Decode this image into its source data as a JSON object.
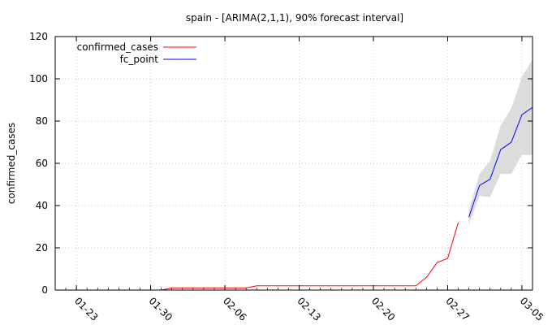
{
  "chart_data": {
    "type": "line",
    "title": "spain -  [ARIMA(2,1,1), 90% forecast interval]",
    "xlabel": "",
    "ylabel": "confirmed_cases",
    "x_axis": "date",
    "xlim": [
      "2020-01-21",
      "2020-03-06"
    ],
    "ylim": [
      0,
      120
    ],
    "grid": true,
    "legend_position": "top-left",
    "x_ticks": [
      "2020-01-23",
      "2020-01-30",
      "2020-02-06",
      "2020-02-13",
      "2020-02-20",
      "2020-02-27",
      "2020-03-05"
    ],
    "x_tick_labels": [
      "01-23",
      "01-30",
      "02-06",
      "02-13",
      "02-20",
      "02-27",
      "03-05"
    ],
    "y_ticks": [
      0,
      20,
      40,
      60,
      80,
      100,
      120
    ],
    "series": [
      {
        "name": "confirmed_cases",
        "color": "#ff0000",
        "x": [
          "2020-01-31",
          "2020-02-01",
          "2020-02-02",
          "2020-02-03",
          "2020-02-04",
          "2020-02-05",
          "2020-02-06",
          "2020-02-07",
          "2020-02-08",
          "2020-02-09",
          "2020-02-10",
          "2020-02-11",
          "2020-02-12",
          "2020-02-13",
          "2020-02-14",
          "2020-02-15",
          "2020-02-16",
          "2020-02-17",
          "2020-02-18",
          "2020-02-19",
          "2020-02-20",
          "2020-02-21",
          "2020-02-22",
          "2020-02-23",
          "2020-02-24",
          "2020-02-25",
          "2020-02-26",
          "2020-02-27",
          "2020-02-28"
        ],
        "y": [
          0,
          1,
          1,
          1,
          1,
          1,
          1,
          1,
          1,
          2,
          2,
          2,
          2,
          2,
          2,
          2,
          2,
          2,
          2,
          2,
          2,
          2,
          2,
          2,
          2,
          6,
          13,
          15,
          32
        ]
      },
      {
        "name": "fc_point",
        "color": "#0000ff",
        "x": [
          "2020-02-29",
          "2020-03-01",
          "2020-03-02",
          "2020-03-03",
          "2020-03-04",
          "2020-03-05",
          "2020-03-06"
        ],
        "y": [
          34.5,
          49.5,
          52.5,
          66.5,
          70,
          83,
          86.5
        ]
      }
    ],
    "forecast_interval": {
      "color": "#dcdcdc",
      "x": [
        "2020-02-29",
        "2020-03-01",
        "2020-03-02",
        "2020-03-03",
        "2020-03-04",
        "2020-03-05",
        "2020-03-06"
      ],
      "lower": [
        31,
        44.5,
        44,
        55,
        55,
        64,
        64
      ],
      "upper": [
        38,
        55,
        61,
        78,
        86,
        101,
        109
      ]
    }
  }
}
